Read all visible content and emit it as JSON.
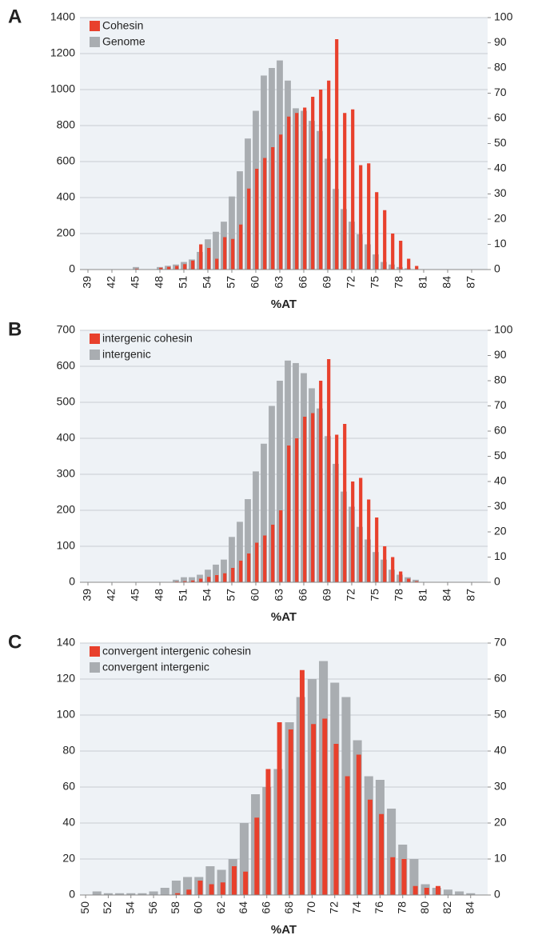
{
  "chart_data": [
    {
      "type": "bar",
      "label": "A",
      "xlabel": "%AT",
      "grid": true,
      "x": [
        39,
        40,
        41,
        42,
        43,
        44,
        45,
        46,
        47,
        48,
        49,
        50,
        51,
        52,
        53,
        54,
        55,
        56,
        57,
        58,
        59,
        60,
        61,
        62,
        63,
        64,
        65,
        66,
        67,
        68,
        69,
        70,
        71,
        72,
        73,
        74,
        75,
        76,
        77,
        78,
        79,
        80,
        81,
        82,
        83,
        84,
        85,
        86,
        87,
        88
      ],
      "series": [
        {
          "name": "Cohesin",
          "color": "#e8402c",
          "values": [
            0,
            0,
            0,
            0,
            0,
            0,
            5,
            0,
            0,
            10,
            15,
            20,
            30,
            50,
            140,
            120,
            60,
            180,
            170,
            250,
            450,
            560,
            620,
            680,
            750,
            850,
            870,
            900,
            960,
            1000,
            1050,
            1280,
            870,
            890,
            580,
            590,
            430,
            330,
            200,
            160,
            60,
            20,
            0,
            0,
            0,
            0,
            0,
            0,
            0,
            0
          ]
        },
        {
          "name": "Genome",
          "color": "#a9adb1",
          "axis": "y2",
          "values": [
            0,
            0,
            0,
            0,
            0,
            0,
            1,
            0,
            0,
            1,
            1.5,
            2,
            3,
            4,
            7,
            12,
            15,
            19,
            29,
            39,
            52,
            63,
            77,
            80,
            83,
            75,
            64,
            63,
            59,
            55,
            44,
            32,
            24,
            19,
            14,
            10,
            6,
            3,
            2,
            1,
            0.5,
            0,
            0,
            0,
            0,
            0,
            0,
            0,
            0,
            0
          ]
        }
      ],
      "xlim": [
        38,
        89
      ],
      "xticks": [
        39,
        42,
        45,
        48,
        51,
        54,
        57,
        60,
        63,
        66,
        69,
        72,
        75,
        78,
        81,
        84,
        87
      ],
      "ylim": [
        0,
        1400
      ],
      "yticks": [
        0,
        200,
        400,
        600,
        800,
        1000,
        1200,
        1400
      ],
      "y2lim": [
        0,
        100
      ],
      "y2ticks": [
        0,
        10,
        20,
        30,
        40,
        50,
        60,
        70,
        80,
        90,
        100
      ]
    },
    {
      "type": "bar",
      "label": "B",
      "xlabel": "%AT",
      "grid": true,
      "x": [
        39,
        40,
        41,
        42,
        43,
        44,
        45,
        46,
        47,
        48,
        49,
        50,
        51,
        52,
        53,
        54,
        55,
        56,
        57,
        58,
        59,
        60,
        61,
        62,
        63,
        64,
        65,
        66,
        67,
        68,
        69,
        70,
        71,
        72,
        73,
        74,
        75,
        76,
        77,
        78,
        79,
        80,
        81,
        82,
        83,
        84,
        85,
        86,
        87,
        88
      ],
      "series": [
        {
          "name": "intergenic cohesin",
          "color": "#e8402c",
          "values": [
            0,
            0,
            0,
            0,
            0,
            0,
            0,
            0,
            0,
            0,
            0,
            2,
            3,
            5,
            10,
            15,
            20,
            25,
            40,
            60,
            80,
            110,
            130,
            160,
            200,
            380,
            400,
            460,
            470,
            560,
            620,
            410,
            440,
            280,
            290,
            230,
            180,
            100,
            70,
            30,
            10,
            3,
            0,
            0,
            0,
            0,
            0,
            0,
            0,
            0
          ]
        },
        {
          "name": "intergenic",
          "color": "#a9adb1",
          "axis": "y2",
          "values": [
            0,
            0,
            0,
            0,
            0,
            0,
            0,
            0,
            0,
            0,
            0,
            1,
            2,
            2,
            3,
            5,
            7,
            9,
            18,
            24,
            33,
            44,
            55,
            70,
            80,
            88,
            87,
            83,
            77,
            69,
            58,
            47,
            36,
            30,
            22,
            17,
            12,
            9,
            5,
            3,
            2,
            1,
            0,
            0,
            0,
            0,
            0,
            0,
            0,
            0
          ]
        }
      ],
      "xlim": [
        38,
        89
      ],
      "xticks": [
        39,
        42,
        45,
        48,
        51,
        54,
        57,
        60,
        63,
        66,
        69,
        72,
        75,
        78,
        81,
        84,
        87
      ],
      "ylim": [
        0,
        700
      ],
      "yticks": [
        0,
        100,
        200,
        300,
        400,
        500,
        600,
        700
      ],
      "y2lim": [
        0,
        100
      ],
      "y2ticks": [
        0,
        10,
        20,
        30,
        40,
        50,
        60,
        70,
        80,
        90,
        100
      ]
    },
    {
      "type": "bar",
      "label": "C",
      "xlabel": "%AT",
      "grid": true,
      "x": [
        50,
        51,
        52,
        53,
        54,
        55,
        56,
        57,
        58,
        59,
        60,
        61,
        62,
        63,
        64,
        65,
        66,
        67,
        68,
        69,
        70,
        71,
        72,
        73,
        74,
        75,
        76,
        77,
        78,
        79,
        80,
        81,
        82,
        83,
        84,
        85
      ],
      "series": [
        {
          "name": "convergent intergenic cohesin",
          "color": "#e8402c",
          "values": [
            0,
            0,
            0,
            0,
            0,
            0,
            0,
            0,
            1,
            3,
            8,
            6,
            7,
            16,
            13,
            43,
            70,
            96,
            92,
            125,
            95,
            98,
            84,
            66,
            78,
            53,
            45,
            21,
            20,
            5,
            4,
            5,
            0,
            0,
            0,
            0
          ]
        },
        {
          "name": "convergent intergenic",
          "color": "#a9adb1",
          "axis": "y2",
          "values": [
            0,
            1,
            0.5,
            0.5,
            0.5,
            0.5,
            1,
            2,
            4,
            5,
            5,
            8,
            7,
            10,
            20,
            28,
            30,
            35,
            48,
            55,
            60,
            65,
            59,
            55,
            43,
            33,
            32,
            24,
            14,
            10,
            3,
            2,
            1.5,
            1,
            0.5,
            0
          ]
        }
      ],
      "xlim": [
        49.5,
        85.5
      ],
      "xticks": [
        50,
        52,
        54,
        56,
        58,
        60,
        62,
        64,
        66,
        68,
        70,
        72,
        74,
        76,
        78,
        80,
        82,
        84
      ],
      "ylim": [
        0,
        140
      ],
      "yticks": [
        0,
        20,
        40,
        60,
        80,
        100,
        120,
        140
      ],
      "y2lim": [
        0,
        70
      ],
      "y2ticks": [
        0,
        10,
        20,
        30,
        40,
        50,
        60,
        70
      ]
    }
  ]
}
